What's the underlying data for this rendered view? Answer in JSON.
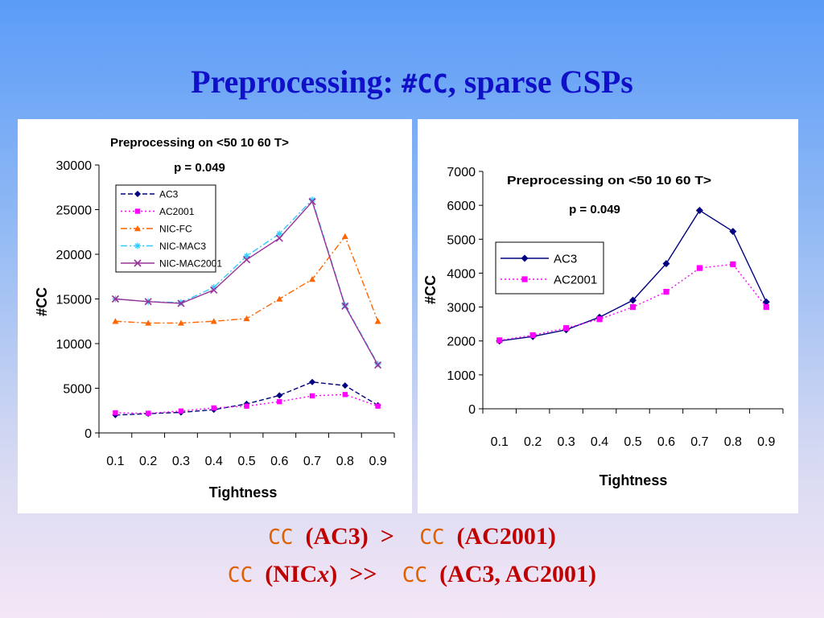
{
  "slide": {
    "title_prefix": "Preprocessing: ",
    "title_mono": "#CC",
    "title_suffix": ", sparse CSPs"
  },
  "bottom": {
    "line1": {
      "cc_a": "CC",
      "text_a": "  (AC3)  ",
      "op": ">",
      "cc_b": "  CC",
      "text_b": "  (AC2001)"
    },
    "line2": {
      "cc_a": "CC",
      "text_a": "  (NIC",
      "italic": "x",
      "text_b": ")  ",
      "op": ">>",
      "cc_b": "  CC",
      "text_c": "  (AC3, AC2001)"
    }
  },
  "chart_data": [
    {
      "type": "line",
      "title": "Preprocessing on <50 10 60 T>",
      "subtitle": "p = 0.049",
      "xlabel": "Tightness",
      "ylabel": "#CC",
      "x": [
        0.1,
        0.2,
        0.3,
        0.4,
        0.5,
        0.6,
        0.7,
        0.8,
        0.9
      ],
      "x_tick_labels": [
        "0.1",
        "0.2",
        "0.3",
        "0.4",
        "0.5",
        "0.6",
        "0.7",
        "0.8",
        "0.9"
      ],
      "ylim": [
        0,
        30000
      ],
      "y_ticks": [
        0,
        5000,
        10000,
        15000,
        20000,
        25000,
        30000
      ],
      "y_tick_labels": [
        "0",
        "5000",
        "10000",
        "15000",
        "20000",
        "25000",
        "30000"
      ],
      "grid": false,
      "legend_position": "top-left",
      "series": [
        {
          "name": "AC3",
          "color": "#000080",
          "marker": "diamond",
          "dash": "6,3",
          "values": [
            2000,
            2150,
            2300,
            2600,
            3250,
            4200,
            5700,
            5300,
            3100
          ]
        },
        {
          "name": "AC2001",
          "color": "#ff00ff",
          "marker": "square",
          "dash": "2,3",
          "values": [
            2250,
            2200,
            2450,
            2800,
            3000,
            3500,
            4150,
            4300,
            3000
          ]
        },
        {
          "name": "NIC-FC",
          "color": "#ff6600",
          "marker": "triangle",
          "dash": "8,3,2,3",
          "values": [
            12500,
            12300,
            12300,
            12500,
            12800,
            15000,
            17200,
            22000,
            12500
          ]
        },
        {
          "name": "NIC-MAC3",
          "color": "#33ccff",
          "marker": "star",
          "dash": "8,3,2,3",
          "values": [
            15000,
            14700,
            14600,
            16300,
            19800,
            22300,
            26100,
            14300,
            7700
          ]
        },
        {
          "name": "NIC-MAC2001",
          "color": "#993399",
          "marker": "x",
          "dash": "none",
          "values": [
            15000,
            14700,
            14500,
            16000,
            19400,
            21800,
            25900,
            14200,
            7600
          ]
        }
      ]
    },
    {
      "type": "line",
      "title": "Preprocessing on <50 10 60 T>",
      "subtitle": "p = 0.049",
      "xlabel": "Tightness",
      "ylabel": "#CC",
      "x": [
        0.1,
        0.2,
        0.3,
        0.4,
        0.5,
        0.6,
        0.7,
        0.8,
        0.9
      ],
      "x_tick_labels": [
        "0.1",
        "0.2",
        "0.3",
        "0.4",
        "0.5",
        "0.6",
        "0.7",
        "0.8",
        "0.9"
      ],
      "ylim": [
        0,
        7000
      ],
      "y_ticks": [
        0,
        1000,
        2000,
        3000,
        4000,
        5000,
        6000,
        7000
      ],
      "y_tick_labels": [
        "0",
        "1000",
        "2000",
        "3000",
        "4000",
        "5000",
        "6000",
        "7000"
      ],
      "grid": false,
      "legend_position": "middle-left",
      "series": [
        {
          "name": "AC3",
          "color": "#000080",
          "marker": "diamond",
          "dash": "none",
          "values": [
            2000,
            2130,
            2330,
            2700,
            3200,
            4280,
            5850,
            5230,
            3150
          ]
        },
        {
          "name": "AC2001",
          "color": "#ff00ff",
          "marker": "square",
          "dash": "2,3",
          "values": [
            2020,
            2170,
            2380,
            2640,
            3000,
            3450,
            4150,
            4260,
            3000
          ]
        }
      ]
    }
  ]
}
